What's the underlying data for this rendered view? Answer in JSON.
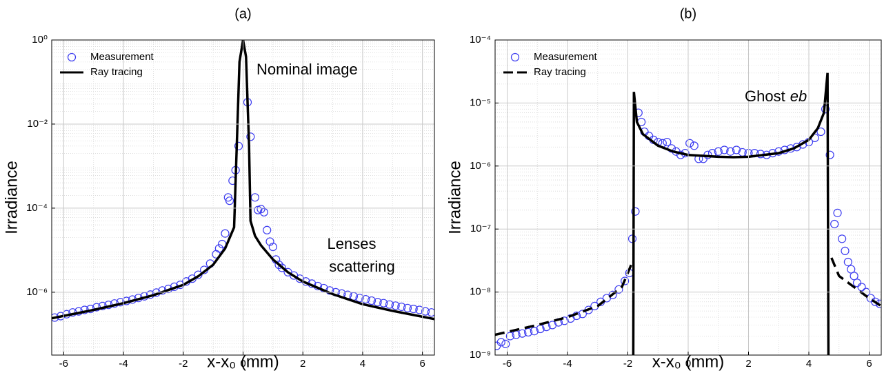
{
  "chart_data": [
    {
      "type": "line",
      "title": "(a)",
      "x_label": "x-x₀ (mm)",
      "y_label": "Irradiance",
      "log_y": true,
      "grid": true,
      "minor_grid": true,
      "legend": "upper left",
      "xlim": [
        -6.4,
        6.4
      ],
      "ylim": [
        3.2e-08,
        1
      ],
      "xticks": [
        -6,
        -4,
        -2,
        0,
        2,
        4,
        6
      ],
      "yticks": [
        {
          "value": 1e-06,
          "label": "10⁻⁶"
        },
        {
          "value": 0.0001,
          "label": "10⁻⁴"
        },
        {
          "value": 0.01,
          "label": "10⁻²"
        },
        {
          "value": 1,
          "label": "10⁰"
        }
      ],
      "annotations": [
        "Nominal image",
        "Lenses",
        "scattering"
      ],
      "series": [
        {
          "name": "Measurement",
          "mode": "markers",
          "color": "#3b3bf0",
          "x": [
            -6.3,
            -6.1,
            -5.9,
            -5.7,
            -5.5,
            -5.3,
            -5.1,
            -4.9,
            -4.7,
            -4.5,
            -4.3,
            -4.1,
            -3.9,
            -3.7,
            -3.5,
            -3.3,
            -3.1,
            -2.9,
            -2.7,
            -2.5,
            -2.3,
            -2.1,
            -1.9,
            -1.7,
            -1.5,
            -1.3,
            -1.1,
            -0.9,
            -0.8,
            -0.7,
            -0.6,
            -0.5,
            -0.45,
            -0.35,
            -0.25,
            -0.15,
            0.15,
            0.25,
            0.4,
            0.5,
            0.6,
            0.7,
            0.8,
            0.9,
            1.0,
            1.1,
            1.2,
            1.3,
            1.5,
            1.7,
            1.9,
            2.1,
            2.3,
            2.5,
            2.7,
            2.9,
            3.1,
            3.3,
            3.5,
            3.7,
            3.9,
            4.1,
            4.3,
            4.5,
            4.7,
            4.9,
            5.1,
            5.3,
            5.5,
            5.7,
            5.9,
            6.1,
            6.3
          ],
          "values": [
            2.5e-07,
            2.7e-07,
            3e-07,
            3.3e-07,
            3.5e-07,
            3.8e-07,
            4e-07,
            4.4e-07,
            4.7e-07,
            5e-07,
            5.4e-07,
            5.8e-07,
            6.2e-07,
            6.7e-07,
            7.3e-07,
            8e-07,
            8.8e-07,
            9.8e-07,
            1.1e-06,
            1.2e-06,
            1.35e-06,
            1.5e-06,
            1.8e-06,
            2.1e-06,
            2.6e-06,
            3.4e-06,
            4.8e-06,
            8e-06,
            1.1e-05,
            1.4e-05,
            2.5e-05,
            0.00018,
            0.00015,
            0.00045,
            0.0008,
            0.003,
            0.033,
            0.005,
            0.00018,
            9e-05,
            9.5e-05,
            8e-05,
            3e-05,
            1.6e-05,
            1.2e-05,
            6e-06,
            4.5e-06,
            3.8e-06,
            3e-06,
            2.5e-06,
            2.1e-06,
            1.8e-06,
            1.6e-06,
            1.4e-06,
            1.25e-06,
            1.1e-06,
            1e-06,
            9.3e-07,
            8.7e-07,
            8e-07,
            7.3e-07,
            6.8e-07,
            6.3e-07,
            5.8e-07,
            5.5e-07,
            5.1e-07,
            4.8e-07,
            4.5e-07,
            4.2e-07,
            4e-07,
            3.8e-07,
            3.5e-07,
            3.3e-07
          ]
        },
        {
          "name": "Ray tracing",
          "mode": "line",
          "color": "#000000",
          "x": [
            -6.4,
            -5,
            -4,
            -3,
            -2,
            -1.5,
            -1,
            -0.6,
            -0.3,
            -0.22,
            -0.12,
            0,
            0.1,
            0.2,
            0.25,
            0.4,
            0.6,
            1,
            1.5,
            2,
            3,
            4,
            5,
            6.4
          ],
          "values": [
            2.4e-07,
            3.8e-07,
            5.5e-07,
            8.5e-07,
            1.5e-06,
            2.4e-06,
            4.5e-06,
            1.1e-05,
            3.5e-05,
            0.002,
            0.3,
            1,
            0.4,
            0.003,
            5e-05,
            2.2e-05,
            1.3e-05,
            6e-06,
            3e-06,
            1.8e-06,
            9e-07,
            5.2e-07,
            3.6e-07,
            2.3e-07
          ]
        }
      ]
    },
    {
      "type": "line",
      "title": "(b)",
      "x_label": "x-x₀ (mm)",
      "y_label": "Irradiance",
      "log_y": true,
      "grid": true,
      "minor_grid": true,
      "legend": "upper left",
      "xlim": [
        -6.4,
        6.4
      ],
      "ylim": [
        1e-09,
        0.0001
      ],
      "xticks": [
        -6,
        -4,
        -2,
        0,
        2,
        4,
        6
      ],
      "yticks": [
        {
          "value": 1e-09,
          "label": "10⁻⁹"
        },
        {
          "value": 1e-08,
          "label": "10⁻⁸"
        },
        {
          "value": 1e-07,
          "label": "10⁻⁷"
        },
        {
          "value": 1e-06,
          "label": "10⁻⁶"
        },
        {
          "value": 1e-05,
          "label": "10⁻⁵"
        },
        {
          "value": 0.0001,
          "label": "10⁻⁴"
        }
      ],
      "annotations": [
        {
          "text": "Ghost",
          "italic": "eb"
        }
      ],
      "series": [
        {
          "name": "Measurement",
          "mode": "markers",
          "color": "#3b3bf0",
          "x": [
            -6.35,
            -6.2,
            -6.05,
            -5.9,
            -5.7,
            -5.5,
            -5.3,
            -5.1,
            -4.9,
            -4.7,
            -4.5,
            -4.3,
            -4.1,
            -3.9,
            -3.7,
            -3.5,
            -3.3,
            -3.1,
            -2.9,
            -2.7,
            -2.5,
            -2.3,
            -2.1,
            -1.95,
            -1.85,
            -1.75,
            -1.65,
            -1.55,
            -1.45,
            -1.3,
            -1.15,
            -1,
            -0.85,
            -0.7,
            -0.55,
            -0.4,
            -0.25,
            -0.1,
            0.05,
            0.2,
            0.35,
            0.5,
            0.65,
            0.8,
            1,
            1.2,
            1.4,
            1.6,
            1.8,
            2,
            2.2,
            2.4,
            2.6,
            2.8,
            3,
            3.2,
            3.4,
            3.6,
            3.8,
            4,
            4.2,
            4.4,
            4.55,
            4.7,
            4.85,
            4.95,
            5.1,
            5.2,
            5.3,
            5.4,
            5.5,
            5.6,
            5.75,
            5.9,
            6.05,
            6.2,
            6.35
          ],
          "values": [
            1.4e-09,
            1.6e-09,
            1.5e-09,
            2e-09,
            2.1e-09,
            2.2e-09,
            2.3e-09,
            2.4e-09,
            2.6e-09,
            2.8e-09,
            3e-09,
            3.3e-09,
            3.5e-09,
            3.8e-09,
            4.2e-09,
            4.5e-09,
            5.2e-09,
            6e-09,
            7e-09,
            8e-09,
            9e-09,
            1.1e-08,
            1.5e-08,
            2e-08,
            7e-08,
            1.9e-07,
            7e-06,
            5e-06,
            3.5e-06,
            3e-06,
            2.6e-06,
            2.4e-06,
            2.3e-06,
            2.4e-06,
            1.9e-06,
            1.7e-06,
            1.5e-06,
            1.6e-06,
            2.3e-06,
            2.1e-06,
            1.3e-06,
            1.3e-06,
            1.5e-06,
            1.6e-06,
            1.7e-06,
            1.8e-06,
            1.7e-06,
            1.8e-06,
            1.65e-06,
            1.6e-06,
            1.6e-06,
            1.55e-06,
            1.5e-06,
            1.6e-06,
            1.7e-06,
            1.8e-06,
            1.9e-06,
            2e-06,
            2.2e-06,
            2.4e-06,
            2.8e-06,
            3.5e-06,
            8e-06,
            1.5e-06,
            1.2e-07,
            1.8e-07,
            7e-08,
            4.5e-08,
            3e-08,
            2.3e-08,
            1.8e-08,
            1.4e-08,
            1.2e-08,
            1e-08,
            8e-09,
            7e-09,
            6.5e-09
          ]
        },
        {
          "name": "Ray tracing",
          "mode": "line",
          "color": "#000000",
          "segments": [
            {
              "style": "dashed",
              "x": [
                -6.4,
                -5,
                -4,
                -3,
                -2.2,
                -1.85
              ],
              "values": [
                2.1e-09,
                3e-09,
                4e-09,
                6e-09,
                1.2e-08,
                3e-08
              ]
            },
            {
              "style": "solid",
              "x": [
                -1.82,
                -1.8,
                -1.7,
                -1.5,
                -1,
                -0.5,
                0,
                1,
                1.5,
                2,
                3,
                3.5,
                4,
                4.3,
                4.5,
                4.62,
                4.65
              ],
              "values": [
                1e-09,
                1.5e-05,
                5e-06,
                3.2e-06,
                2.1e-06,
                1.7e-06,
                1.5e-06,
                1.4e-06,
                1.38e-06,
                1.4e-06,
                1.6e-06,
                1.9e-06,
                2.6e-06,
                4e-06,
                7e-06,
                3e-05,
                1e-09
              ]
            },
            {
              "style": "dashed",
              "x": [
                4.75,
                5,
                5.5,
                6,
                6.4
              ],
              "values": [
                3.5e-08,
                1.8e-08,
                1.2e-08,
                8e-09,
                6e-09
              ]
            }
          ]
        }
      ]
    }
  ]
}
